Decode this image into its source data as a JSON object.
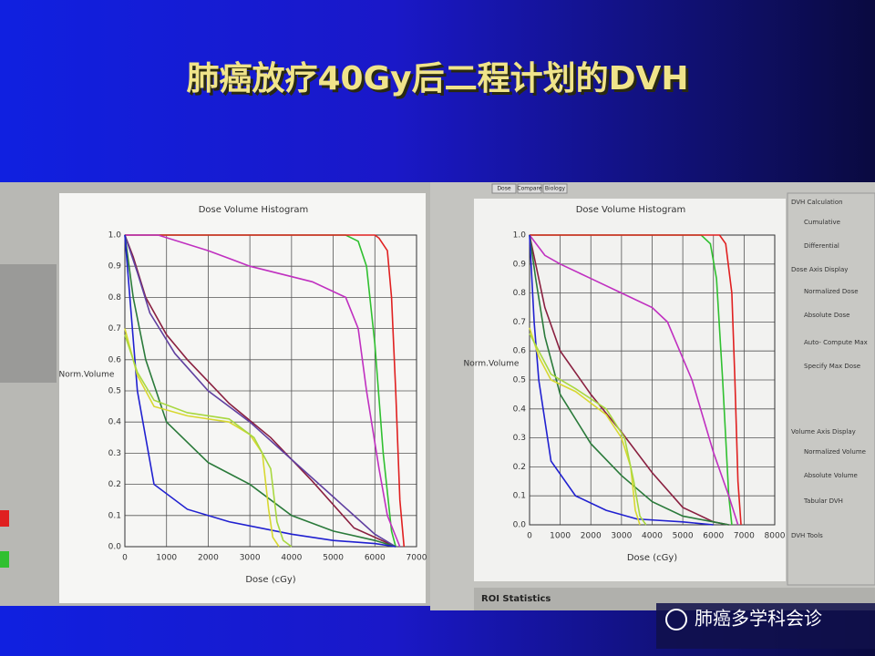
{
  "slide": {
    "title": "肺癌放疗40Gy后二程计划的DVH",
    "watermark": "肺癌多学科会诊"
  },
  "ui_panel": {
    "tabs": [
      "Dose",
      "Compare",
      "Biology"
    ],
    "items": [
      "DVH Calculation",
      "Cumulative",
      "Differential",
      "Dose Axis Display",
      "Normalized Dose",
      "Absolute Dose",
      "Auto- Compute Max",
      "Specify Max Dose",
      "Volume Axis Display",
      "Normalized Volume",
      "Absolute Volume",
      "Tabular DVH",
      "DVH Tools"
    ],
    "footer": "ROI Statistics"
  },
  "chart_data": [
    {
      "type": "line",
      "title": "Dose Volume Histogram",
      "x_label": "Dose (cGy)",
      "y_label": "Norm.Volume",
      "xlim": [
        0,
        7000
      ],
      "xticks": [
        0,
        1000,
        2000,
        3000,
        4000,
        5000,
        6000,
        7000
      ],
      "ylim": [
        0,
        1
      ],
      "yticks": [
        {
          "value": 0,
          "label": "0.0"
        },
        0.1,
        0.2,
        0.3,
        0.4,
        0.5,
        0.6,
        0.7,
        0.8,
        0.9,
        {
          "value": 1,
          "label": "1.0"
        }
      ],
      "grid": true,
      "series": [
        {
          "color": "#30c030",
          "x": [
            0,
            2000,
            4000,
            5300,
            5600,
            5800,
            6000,
            6200,
            6400,
            6500
          ],
          "values": [
            1,
            1,
            1,
            1,
            0.98,
            0.9,
            0.65,
            0.3,
            0.05,
            0
          ]
        },
        {
          "color": "#e02020",
          "x": [
            0,
            2000,
            4000,
            6000,
            6100,
            6300,
            6400,
            6500,
            6600,
            6700
          ],
          "values": [
            1,
            1,
            1,
            1,
            0.99,
            0.95,
            0.8,
            0.5,
            0.15,
            0
          ]
        },
        {
          "color": "#c030c0",
          "x": [
            0,
            800,
            2000,
            3000,
            4500,
            5300,
            5600,
            5800,
            6100,
            6300,
            6600
          ],
          "values": [
            1,
            1,
            0.95,
            0.9,
            0.85,
            0.8,
            0.7,
            0.5,
            0.25,
            0.1,
            0
          ]
        },
        {
          "color": "#8a2040",
          "x": [
            0,
            200,
            500,
            1000,
            1500,
            2500,
            3500,
            4500,
            5500,
            6500
          ],
          "values": [
            1,
            0.93,
            0.8,
            0.68,
            0.6,
            0.46,
            0.35,
            0.21,
            0.06,
            0
          ]
        },
        {
          "color": "#6040a0",
          "x": [
            0,
            300,
            600,
            1200,
            2000,
            3000,
            4000,
            5000,
            6000,
            6500
          ],
          "values": [
            1,
            0.88,
            0.75,
            0.62,
            0.5,
            0.4,
            0.28,
            0.16,
            0.04,
            0
          ]
        },
        {
          "color": "#2a7a3a",
          "x": [
            0,
            200,
            500,
            1000,
            2000,
            3000,
            4000,
            5000,
            6000,
            6500
          ],
          "values": [
            1,
            0.8,
            0.6,
            0.4,
            0.27,
            0.2,
            0.1,
            0.05,
            0.02,
            0
          ]
        },
        {
          "color": "#2020d0",
          "x": [
            0,
            150,
            300,
            700,
            1500,
            2500,
            4000,
            5000,
            6000,
            6500
          ],
          "values": [
            1,
            0.75,
            0.5,
            0.2,
            0.12,
            0.08,
            0.04,
            0.02,
            0.01,
            0
          ]
        },
        {
          "color": "#d8d830",
          "x": [
            0,
            300,
            700,
            1500,
            2500,
            3000,
            3300,
            3450,
            3550,
            3700
          ],
          "values": [
            0.7,
            0.55,
            0.45,
            0.42,
            0.4,
            0.36,
            0.3,
            0.12,
            0.03,
            0
          ]
        },
        {
          "color": "#a8d840",
          "x": [
            0,
            300,
            700,
            1500,
            2500,
            3100,
            3500,
            3650,
            3800,
            4000
          ],
          "values": [
            0.68,
            0.56,
            0.47,
            0.43,
            0.41,
            0.35,
            0.25,
            0.08,
            0.02,
            0
          ]
        }
      ]
    },
    {
      "type": "line",
      "title": "Dose Volume Histogram",
      "x_label": "Dose (cGy)",
      "y_label": "Norm.Volume",
      "xlim": [
        0,
        8000
      ],
      "xticks": [
        0,
        1000,
        2000,
        3000,
        4000,
        5000,
        6000,
        7000,
        8000
      ],
      "ylim": [
        0,
        1
      ],
      "yticks": [
        {
          "value": 0,
          "label": "0.0"
        },
        0.1,
        0.2,
        0.3,
        0.4,
        0.5,
        0.6,
        0.7,
        0.8,
        0.9,
        {
          "value": 1,
          "label": "1.0"
        }
      ],
      "grid": true,
      "series": [
        {
          "color": "#30c030",
          "x": [
            0,
            2000,
            4000,
            5600,
            5900,
            6100,
            6300,
            6500,
            6600
          ],
          "values": [
            1,
            1,
            1,
            1,
            0.97,
            0.85,
            0.5,
            0.1,
            0
          ]
        },
        {
          "color": "#e02020",
          "x": [
            0,
            2000,
            4000,
            6200,
            6400,
            6600,
            6700,
            6800,
            6900
          ],
          "values": [
            1,
            1,
            1,
            1,
            0.97,
            0.8,
            0.5,
            0.15,
            0
          ]
        },
        {
          "color": "#c030c0",
          "x": [
            0,
            500,
            1000,
            2000,
            3000,
            4000,
            4500,
            5300,
            6000,
            6500,
            6800
          ],
          "values": [
            1,
            0.93,
            0.9,
            0.85,
            0.8,
            0.75,
            0.7,
            0.5,
            0.25,
            0.1,
            0
          ]
        },
        {
          "color": "#8a2040",
          "x": [
            0,
            200,
            500,
            1000,
            2000,
            3000,
            4000,
            5000,
            6000,
            6500
          ],
          "values": [
            1,
            0.9,
            0.75,
            0.6,
            0.45,
            0.32,
            0.18,
            0.06,
            0.01,
            0
          ]
        },
        {
          "color": "#2a7a3a",
          "x": [
            0,
            200,
            500,
            1000,
            2000,
            3000,
            4000,
            5000,
            6000,
            6500
          ],
          "values": [
            1,
            0.85,
            0.65,
            0.45,
            0.28,
            0.17,
            0.08,
            0.03,
            0.01,
            0
          ]
        },
        {
          "color": "#2020d0",
          "x": [
            0,
            150,
            300,
            700,
            1500,
            2500,
            3500,
            5000,
            6000
          ],
          "values": [
            1,
            0.7,
            0.5,
            0.22,
            0.1,
            0.05,
            0.02,
            0.01,
            0
          ]
        },
        {
          "color": "#d8d830",
          "x": [
            0,
            300,
            700,
            1500,
            2500,
            3000,
            3300,
            3450,
            3600
          ],
          "values": [
            0.68,
            0.58,
            0.5,
            0.46,
            0.38,
            0.3,
            0.2,
            0.05,
            0
          ]
        },
        {
          "color": "#a8d840",
          "x": [
            0,
            300,
            700,
            1500,
            2500,
            3100,
            3400,
            3600,
            3800
          ],
          "values": [
            0.66,
            0.6,
            0.52,
            0.47,
            0.4,
            0.3,
            0.15,
            0.03,
            0
          ]
        }
      ]
    }
  ]
}
